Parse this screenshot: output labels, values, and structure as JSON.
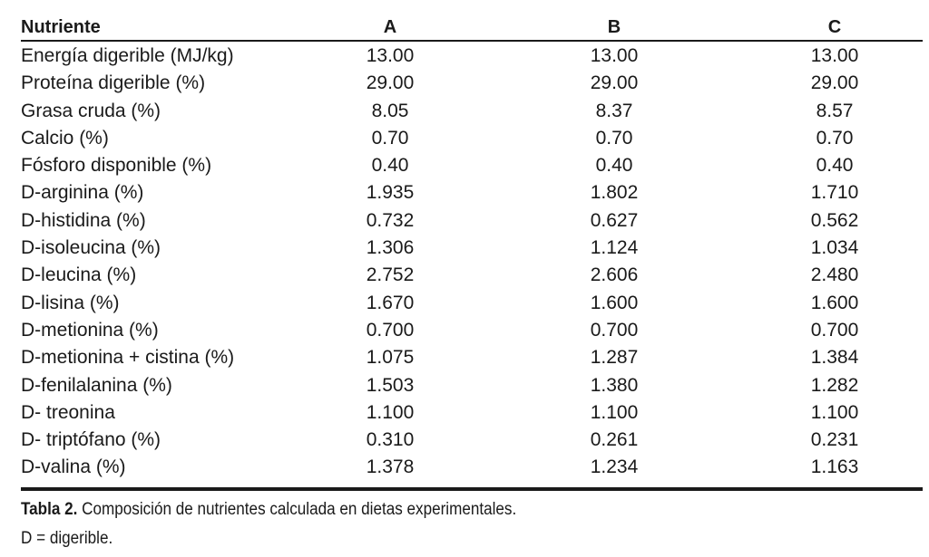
{
  "table": {
    "headers": [
      "Nutriente",
      "A",
      "B",
      "C"
    ],
    "rows": [
      [
        "Energía digerible (MJ/kg)",
        "13.00",
        "13.00",
        "13.00"
      ],
      [
        "Proteína digerible (%)",
        "29.00",
        "29.00",
        "29.00"
      ],
      [
        "Grasa cruda (%)",
        "8.05",
        "8.37",
        "8.57"
      ],
      [
        "Calcio (%)",
        "0.70",
        "0.70",
        "0.70"
      ],
      [
        "Fósforo disponible (%)",
        "0.40",
        "0.40",
        "0.40"
      ],
      [
        "D-arginina (%)",
        "1.935",
        "1.802",
        "1.710"
      ],
      [
        "D-histidina (%)",
        "0.732",
        "0.627",
        "0.562"
      ],
      [
        "D-isoleucina (%)",
        "1.306",
        "1.124",
        "1.034"
      ],
      [
        "D-leucina (%)",
        "2.752",
        "2.606",
        "2.480"
      ],
      [
        "D-lisina (%)",
        "1.670",
        "1.600",
        "1.600"
      ],
      [
        "D-metionina (%)",
        "0.700",
        "0.700",
        "0.700"
      ],
      [
        "D-metionina + cistina (%)",
        "1.075",
        "1.287",
        "1.384"
      ],
      [
        "D-fenilalanina (%)",
        "1.503",
        "1.380",
        "1.282"
      ],
      [
        "D- treonina",
        "1.100",
        "1.100",
        "1.100"
      ],
      [
        "D- triptófano (%)",
        "0.310",
        "0.261",
        "0.231"
      ],
      [
        "D-valina (%)",
        "1.378",
        "1.234",
        "1.163"
      ]
    ]
  },
  "caption": {
    "label": "Tabla 2.",
    "text": " Composición de nutrientes calculada en dietas experimentales.",
    "note": "D = digerible."
  }
}
